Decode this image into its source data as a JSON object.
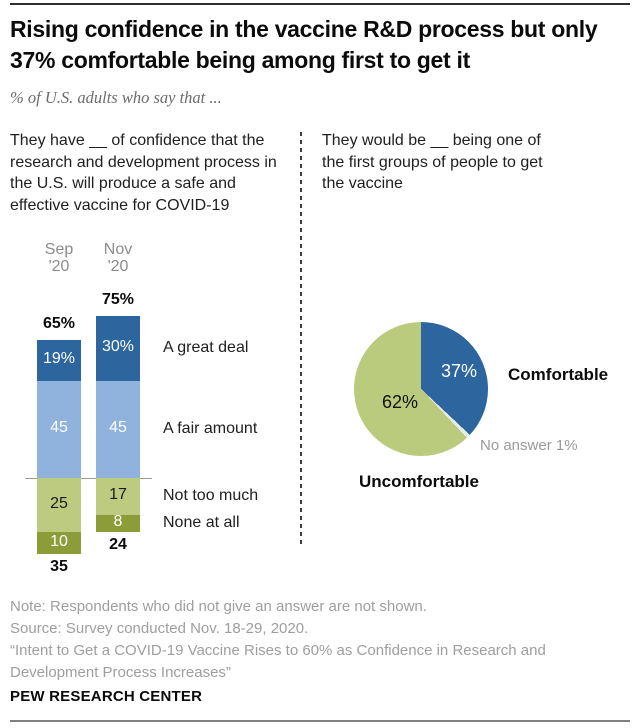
{
  "header": {
    "title": "Rising confidence in the vaccine R&D process but only 37% comfortable being among first to get it",
    "subtitle": "% of U.S. adults who say that ..."
  },
  "left_panel": {
    "question": "They have __ of confidence that the research and development process in the U.S. will produce a safe and effective vaccine for COVID-19"
  },
  "right_panel": {
    "question": "They would be __ being one of the first groups of people to get the vaccine"
  },
  "colors": {
    "dark_blue": "#2d669e",
    "light_blue": "#8fb3dd",
    "light_green": "#bdcb80",
    "olive_green": "#8b9c38",
    "pie_green": "#bacb7e",
    "no_answer_sliver": "#e9e9e6",
    "muted_gray": "#8c8c8c"
  },
  "chart_data": [
    {
      "type": "bar",
      "subtype": "stacked-diverging",
      "title": "Confidence that R&D process will produce a safe and effective vaccine",
      "categories": [
        "Sep '20",
        "Nov '20"
      ],
      "series": [
        {
          "name": "A great deal",
          "side": "above",
          "values": [
            19,
            30
          ],
          "value_labels": [
            "19%",
            "30%"
          ],
          "color": "#2d669e",
          "label_color": "#ffffff"
        },
        {
          "name": "A fair amount",
          "side": "above",
          "values": [
            45,
            45
          ],
          "value_labels": [
            "45",
            "45"
          ],
          "color": "#8fb3dd",
          "label_color": "#ffffff"
        },
        {
          "name": "Not too much",
          "side": "below",
          "values": [
            25,
            17
          ],
          "value_labels": [
            "25",
            "17"
          ],
          "color": "#bdcb80",
          "label_color": "#1a1a1a"
        },
        {
          "name": "None at all",
          "side": "below",
          "values": [
            10,
            8
          ],
          "value_labels": [
            "10",
            "8"
          ],
          "color": "#8b9c38",
          "label_color": "#ffffff"
        }
      ],
      "totals_above": [
        "65%",
        "75%"
      ],
      "totals_below": [
        "35",
        "24"
      ],
      "axis": {
        "unit": "percent",
        "baseline": 0
      }
    },
    {
      "type": "pie",
      "title": "Comfort being among first groups to get the vaccine",
      "slices": [
        {
          "label": "Comfortable",
          "value": 37,
          "color": "#2d669e"
        },
        {
          "label": "No answer",
          "value": 1,
          "color": "#e9e9e6"
        },
        {
          "label": "Uncomfortable",
          "value": 62,
          "color": "#bacb7e"
        }
      ],
      "labels": {
        "pct_comfortable": "37%",
        "pct_uncomfortable": "62%",
        "comfortable": "Comfortable",
        "no_answer": "No answer 1%",
        "uncomfortable": "Uncomfortable"
      },
      "start_angle_deg": 0,
      "direction": "clockwise",
      "legend_position": "outside"
    }
  ],
  "footer": {
    "note": "Note: Respondents who did not give an answer are not shown.",
    "source": "Source: Survey conducted Nov. 18-29, 2020.",
    "report": "“Intent to Get a COVID-19 Vaccine Rises to 60% as Confidence in Research and Development Process Increases”",
    "brand": "PEW RESEARCH CENTER"
  }
}
